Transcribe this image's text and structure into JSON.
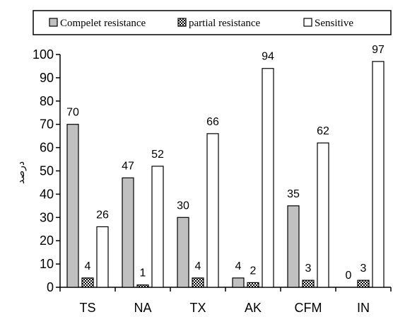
{
  "chart_data": {
    "type": "bar",
    "categories": [
      "TS",
      "NA",
      "TX",
      "AK",
      "CFM",
      "IN"
    ],
    "series": [
      {
        "name": "Compelet resistance",
        "values": [
          70,
          47,
          30,
          4,
          35,
          0
        ],
        "color": "#c0c0c0",
        "pattern": "solid"
      },
      {
        "name": "partial resistance",
        "values": [
          4,
          1,
          4,
          2,
          3,
          3
        ],
        "color": "#808080",
        "pattern": "checker"
      },
      {
        "name": "Sensitive",
        "values": [
          26,
          52,
          66,
          94,
          62,
          97
        ],
        "color": "#ffffff",
        "pattern": "solid"
      }
    ],
    "ylabel": "درصد",
    "ylim": [
      0,
      100
    ],
    "yticks": [
      0,
      10,
      20,
      30,
      40,
      50,
      60,
      70,
      80,
      90,
      100
    ],
    "grid": false,
    "legend_position": "top"
  }
}
